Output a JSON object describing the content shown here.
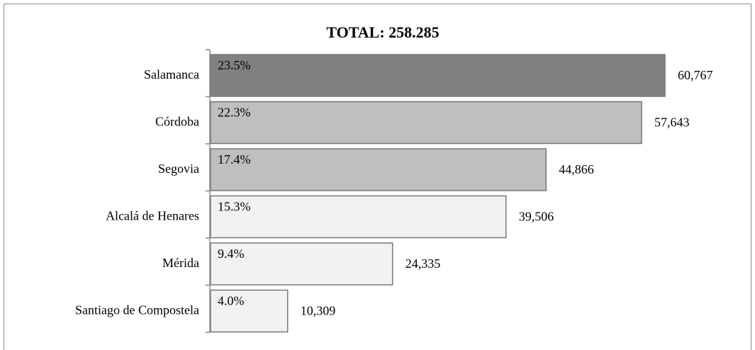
{
  "chart_data": {
    "type": "bar",
    "orientation": "horizontal",
    "title": "TOTAL: 258.285",
    "categories": [
      "Salamanca",
      "Córdoba",
      "Segovia",
      "Alcalá de Henares",
      "Mérida",
      "Santiago de Compostela"
    ],
    "values": [
      60767,
      57643,
      44866,
      39506,
      24335,
      10309
    ],
    "value_labels": [
      "60,767",
      "57,643",
      "44,866",
      "39,506",
      "24,335",
      "10,309"
    ],
    "shares": [
      23.5,
      22.3,
      17.4,
      15.3,
      9.4,
      4.0
    ],
    "share_labels": [
      "23.5%",
      "22.3%",
      "17.4%",
      "15.3%",
      "9.4%",
      "4.0%"
    ],
    "colors": [
      "#808080",
      "#bfbfbf",
      "#bfbfbf",
      "#f2f2f2",
      "#f2f2f2",
      "#f2f2f2"
    ]
  }
}
